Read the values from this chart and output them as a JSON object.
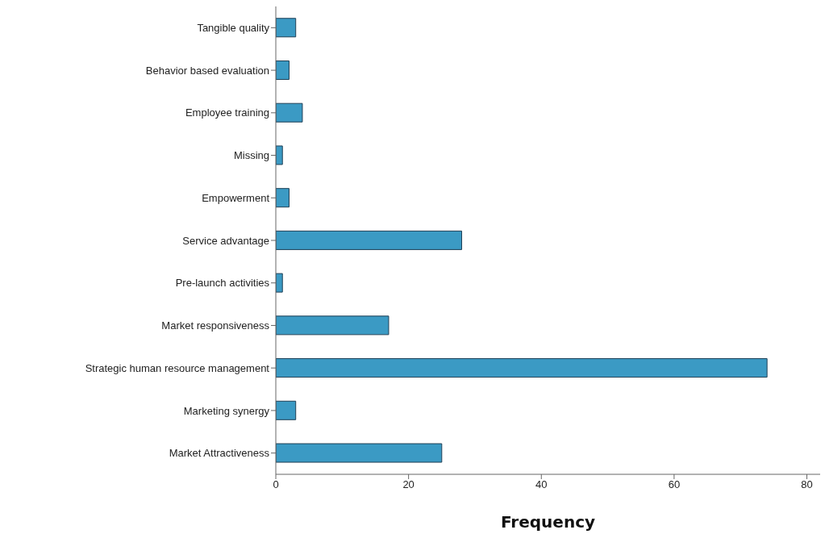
{
  "chart_data": {
    "type": "bar",
    "orientation": "horizontal",
    "xlabel": "Frequency",
    "categories": [
      "Tangible quality",
      "Behavior based evaluation",
      "Employee training",
      "Missing",
      "Empowerment",
      "Service advantage",
      "Pre-launch activities",
      "Market responsiveness",
      "Strategic human resource management",
      "Marketing  synergy",
      "Market Attractiveness"
    ],
    "values": [
      3,
      2,
      4,
      1,
      2,
      28,
      1,
      17,
      74,
      3,
      25
    ],
    "color": "#3b9ac4",
    "xlim": [
      0,
      82
    ],
    "xticks": [
      0,
      20,
      40,
      60,
      80
    ],
    "grid": false
  }
}
